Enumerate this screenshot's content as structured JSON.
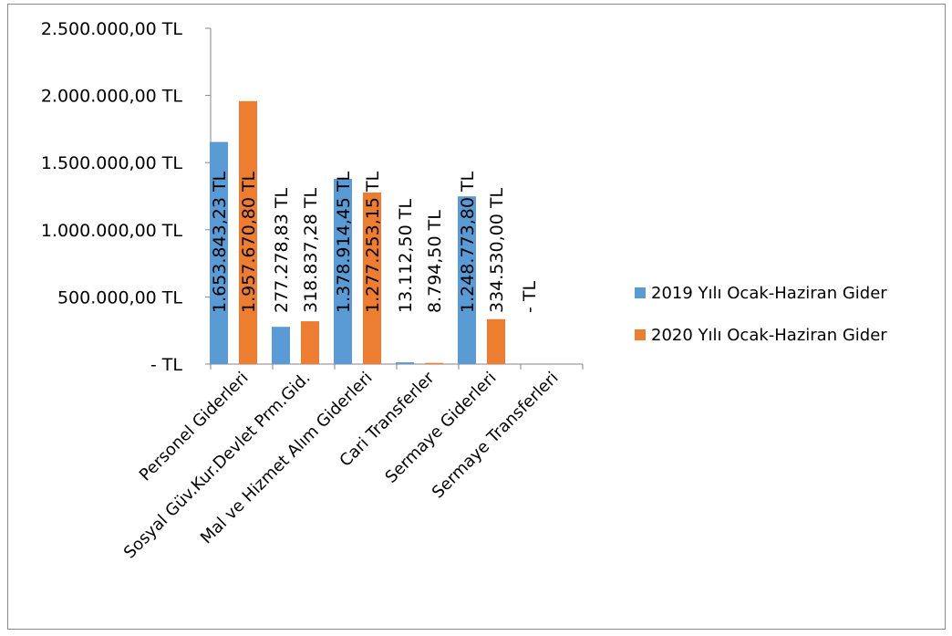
{
  "chart_data": {
    "type": "bar",
    "categories": [
      "Personel Giderleri",
      "Sosyal Güv.Kur.Devlet Prm.Gid.",
      "Mal ve Hizmet Alım Giderleri",
      "Cari Transferler",
      "Sermaye Giderleri",
      "Sermaye Transferleri"
    ],
    "series": [
      {
        "name": "2019 Yılı Ocak-Haziran Gider",
        "color": "#5B9BD5",
        "values": [
          1653843.23,
          277278.83,
          1378914.45,
          13112.5,
          1248773.8,
          0
        ],
        "labels": [
          "1.653.843,23 TL",
          "277.278,83 TL",
          "1.378.914,45 TL",
          "13.112,50 TL",
          "1.248.773,80 TL",
          "-   TL"
        ]
      },
      {
        "name": "2020 Yılı Ocak-Haziran Gider",
        "color": "#ED7D31",
        "values": [
          1957670.8,
          318837.28,
          1277253.15,
          8794.5,
          334530.0,
          0
        ],
        "labels": [
          "1.957.670,80 TL",
          "318.837,28 TL",
          "1.277.253,15 TL",
          "8.794,50 TL",
          "334.530,00 TL",
          ""
        ]
      }
    ],
    "y_ticks": [
      {
        "value": 0,
        "label": "-   TL"
      },
      {
        "value": 500000,
        "label": "500.000,00 TL"
      },
      {
        "value": 1000000,
        "label": "1.000.000,00 TL"
      },
      {
        "value": 1500000,
        "label": "1.500.000,00 TL"
      },
      {
        "value": 2000000,
        "label": "2.000.000,00 TL"
      },
      {
        "value": 2500000,
        "label": "2.500.000,00 TL"
      }
    ],
    "ylim": [
      0,
      2500000
    ],
    "title": "",
    "xlabel": "",
    "ylabel": "",
    "grid": false,
    "legend": "right"
  },
  "colors": {
    "axis": "#868686",
    "frame": "#898989"
  }
}
